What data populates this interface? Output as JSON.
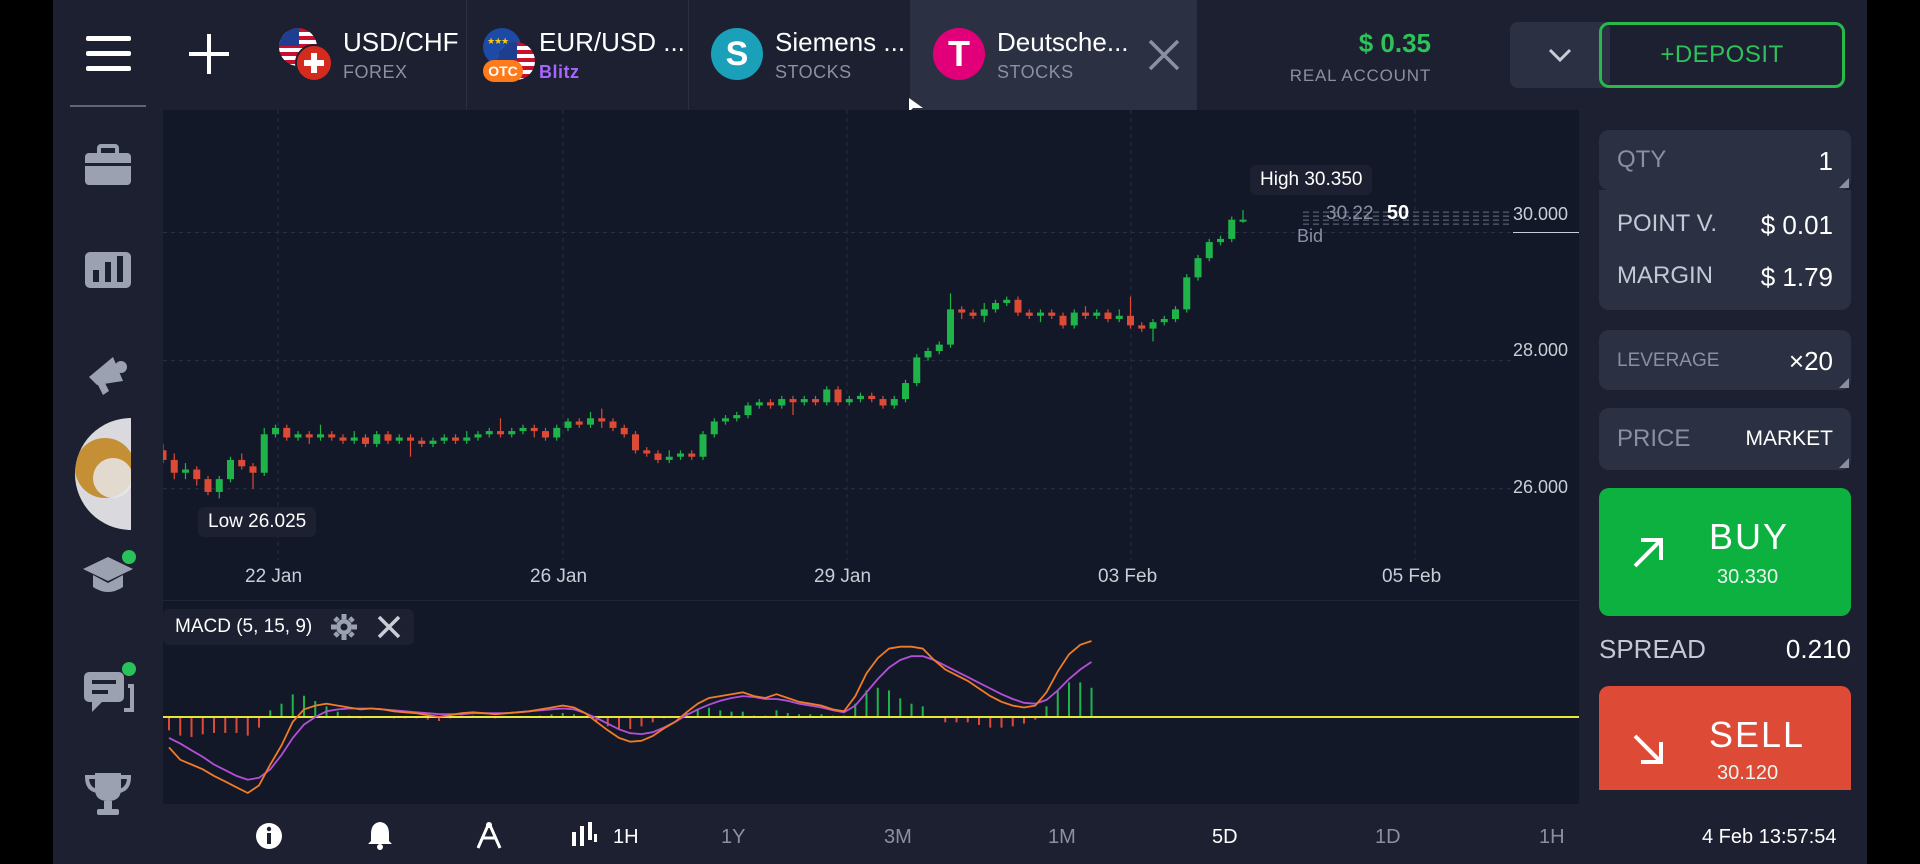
{
  "tabs": [
    {
      "symbol": "USD/CHF",
      "type": "FOREX"
    },
    {
      "symbol": "EUR/USD ...",
      "type": "Blitz",
      "badge": "OTC"
    },
    {
      "symbol": "Siemens ...",
      "type": "STOCKS",
      "logo": "S"
    },
    {
      "symbol": "Deutsche...",
      "type": "STOCKS",
      "logo": "T"
    }
  ],
  "account": {
    "balance": "$ 0.35",
    "label": "REAL ACCOUNT"
  },
  "deposit_label": "+DEPOSIT",
  "chart": {
    "high_label": "High 30.350",
    "low_label": "Low 26.025",
    "current_price_small": "30.22",
    "current_price_big": "50",
    "bid_label": "Bid",
    "y_ticks": [
      "30.000",
      "28.000",
      "26.000"
    ],
    "x_ticks": [
      "22 Jan",
      "26 Jan",
      "29 Jan",
      "03 Feb",
      "05 Feb"
    ]
  },
  "macd": {
    "label": "MACD (5, 15, 9)"
  },
  "bottom": {
    "interval_label": "1H",
    "timeframes": [
      "1Y",
      "3M",
      "1M",
      "5D",
      "1D",
      "1H"
    ],
    "active_timeframe": "5D",
    "clock": "4 Feb 13:57:54"
  },
  "order": {
    "qty_label": "QTY",
    "qty_value": "1",
    "point_label": "POINT V.",
    "point_value": "$ 0.01",
    "margin_label": "MARGIN",
    "margin_value": "$ 1.79",
    "leverage_label": "LEVERAGE",
    "leverage_value": "×20",
    "price_label": "PRICE",
    "price_value": "MARKET",
    "buy_label": "BUY",
    "buy_price": "30.330",
    "spread_label": "SPREAD",
    "spread_value": "0.210",
    "sell_label": "SELL",
    "sell_price": "30.120"
  },
  "colors": {
    "up": "#1fb44a",
    "down": "#dd4a35",
    "macd_line": "#f07c25",
    "signal_line": "#b44fd8",
    "zero_line": "#e6e63c"
  },
  "chart_data": {
    "type": "candlestick",
    "title": "",
    "xlabel": "",
    "ylabel": "",
    "ylim": [
      25.2,
      31.6
    ],
    "x_ticks": [
      "22 Jan",
      "26 Jan",
      "29 Jan",
      "03 Feb",
      "05 Feb"
    ],
    "y_ticks": [
      30.0,
      28.0,
      26.0
    ],
    "high": 30.35,
    "low": 26.025,
    "last_bid": 30.225,
    "candles": [
      [
        26.6,
        26.45,
        26.7,
        26.4
      ],
      [
        26.45,
        26.25,
        26.55,
        26.15
      ],
      [
        26.25,
        26.3,
        26.4,
        26.15
      ],
      [
        26.3,
        26.15,
        26.35,
        26.05
      ],
      [
        26.15,
        25.95,
        26.2,
        25.9
      ],
      [
        25.95,
        26.15,
        26.2,
        25.85
      ],
      [
        26.15,
        26.45,
        26.5,
        26.1
      ],
      [
        26.45,
        26.35,
        26.55,
        26.3
      ],
      [
        26.35,
        26.25,
        26.4,
        26.0
      ],
      [
        26.25,
        26.85,
        26.95,
        26.2
      ],
      [
        26.85,
        26.95,
        27.0,
        26.8
      ],
      [
        26.95,
        26.8,
        27.0,
        26.75
      ],
      [
        26.8,
        26.85,
        26.9,
        26.75
      ],
      [
        26.85,
        26.8,
        26.9,
        26.7
      ],
      [
        26.8,
        26.85,
        27.0,
        26.75
      ],
      [
        26.85,
        26.8,
        26.9,
        26.75
      ],
      [
        26.8,
        26.75,
        26.85,
        26.7
      ],
      [
        26.75,
        26.8,
        26.9,
        26.7
      ],
      [
        26.8,
        26.7,
        26.85,
        26.65
      ],
      [
        26.7,
        26.85,
        26.9,
        26.65
      ],
      [
        26.85,
        26.75,
        26.9,
        26.7
      ],
      [
        26.75,
        26.8,
        26.85,
        26.7
      ],
      [
        26.8,
        26.75,
        26.85,
        26.5
      ],
      [
        26.75,
        26.7,
        26.8,
        26.65
      ],
      [
        26.7,
        26.75,
        26.8,
        26.65
      ],
      [
        26.75,
        26.8,
        26.85,
        26.7
      ],
      [
        26.8,
        26.75,
        26.85,
        26.7
      ],
      [
        26.75,
        26.8,
        26.9,
        26.7
      ],
      [
        26.8,
        26.85,
        26.9,
        26.75
      ],
      [
        26.85,
        26.9,
        26.95,
        26.8
      ],
      [
        26.9,
        26.85,
        27.1,
        26.8
      ],
      [
        26.85,
        26.9,
        26.95,
        26.8
      ],
      [
        26.9,
        26.95,
        27.0,
        26.85
      ],
      [
        26.95,
        26.9,
        27.0,
        26.8
      ],
      [
        26.9,
        26.8,
        26.95,
        26.75
      ],
      [
        26.8,
        26.95,
        27.0,
        26.75
      ],
      [
        26.95,
        27.05,
        27.1,
        26.9
      ],
      [
        27.05,
        27.0,
        27.1,
        26.95
      ],
      [
        27.0,
        27.1,
        27.2,
        26.95
      ],
      [
        27.1,
        27.05,
        27.25,
        26.95
      ],
      [
        27.05,
        26.95,
        27.1,
        26.9
      ],
      [
        26.95,
        26.85,
        27.0,
        26.8
      ],
      [
        26.85,
        26.6,
        26.9,
        26.55
      ],
      [
        26.6,
        26.55,
        26.65,
        26.5
      ],
      [
        26.55,
        26.45,
        26.6,
        26.4
      ],
      [
        26.45,
        26.5,
        26.6,
        26.4
      ],
      [
        26.5,
        26.55,
        26.6,
        26.45
      ],
      [
        26.55,
        26.5,
        26.6,
        26.45
      ],
      [
        26.5,
        26.85,
        26.9,
        26.45
      ],
      [
        26.85,
        27.05,
        27.1,
        26.8
      ],
      [
        27.05,
        27.1,
        27.15,
        27.0
      ],
      [
        27.1,
        27.15,
        27.2,
        27.05
      ],
      [
        27.15,
        27.3,
        27.35,
        27.1
      ],
      [
        27.3,
        27.35,
        27.4,
        27.25
      ],
      [
        27.35,
        27.3,
        27.4,
        27.25
      ],
      [
        27.3,
        27.4,
        27.45,
        27.25
      ],
      [
        27.4,
        27.35,
        27.45,
        27.15
      ],
      [
        27.35,
        27.4,
        27.45,
        27.3
      ],
      [
        27.4,
        27.35,
        27.45,
        27.3
      ],
      [
        27.35,
        27.55,
        27.6,
        27.3
      ],
      [
        27.55,
        27.35,
        27.6,
        27.3
      ],
      [
        27.35,
        27.4,
        27.45,
        27.3
      ],
      [
        27.4,
        27.45,
        27.5,
        27.35
      ],
      [
        27.45,
        27.4,
        27.5,
        27.35
      ],
      [
        27.4,
        27.3,
        27.45,
        27.25
      ],
      [
        27.3,
        27.4,
        27.45,
        27.25
      ],
      [
        27.4,
        27.65,
        27.7,
        27.35
      ],
      [
        27.65,
        28.05,
        28.1,
        27.6
      ],
      [
        28.05,
        28.15,
        28.2,
        28.0
      ],
      [
        28.15,
        28.25,
        28.3,
        28.1
      ],
      [
        28.25,
        28.8,
        29.05,
        28.2
      ],
      [
        28.8,
        28.75,
        28.85,
        28.65
      ],
      [
        28.75,
        28.7,
        28.8,
        28.65
      ],
      [
        28.7,
        28.8,
        28.9,
        28.6
      ],
      [
        28.8,
        28.9,
        28.95,
        28.75
      ],
      [
        28.9,
        28.95,
        29.0,
        28.85
      ],
      [
        28.95,
        28.75,
        29.0,
        28.7
      ],
      [
        28.75,
        28.7,
        28.8,
        28.65
      ],
      [
        28.7,
        28.75,
        28.8,
        28.6
      ],
      [
        28.75,
        28.7,
        28.8,
        28.65
      ],
      [
        28.7,
        28.55,
        28.75,
        28.5
      ],
      [
        28.55,
        28.75,
        28.8,
        28.5
      ],
      [
        28.75,
        28.7,
        28.85,
        28.65
      ],
      [
        28.7,
        28.75,
        28.8,
        28.65
      ],
      [
        28.75,
        28.65,
        28.8,
        28.6
      ],
      [
        28.65,
        28.7,
        28.8,
        28.6
      ],
      [
        28.7,
        28.55,
        29.0,
        28.5
      ],
      [
        28.55,
        28.5,
        28.6,
        28.45
      ],
      [
        28.5,
        28.6,
        28.65,
        28.3
      ],
      [
        28.6,
        28.65,
        28.7,
        28.55
      ],
      [
        28.65,
        28.8,
        28.85,
        28.6
      ],
      [
        28.8,
        29.3,
        29.35,
        28.75
      ],
      [
        29.3,
        29.6,
        29.65,
        29.25
      ],
      [
        29.6,
        29.85,
        29.9,
        29.55
      ],
      [
        29.85,
        29.9,
        29.95,
        29.8
      ],
      [
        29.9,
        30.2,
        30.25,
        29.85
      ],
      [
        30.2,
        30.2,
        30.35,
        30.15
      ]
    ],
    "macd_line": [
      -0.32,
      -0.45,
      -0.5,
      -0.55,
      -0.62,
      -0.68,
      -0.74,
      -0.8,
      -0.72,
      -0.5,
      -0.3,
      -0.05,
      0.08,
      0.12,
      0.14,
      0.12,
      0.1,
      0.08,
      0.09,
      0.08,
      0.06,
      0.05,
      0.04,
      0.02,
      0.0,
      0.02,
      0.04,
      0.05,
      0.04,
      0.03,
      0.04,
      0.05,
      0.06,
      0.08,
      0.1,
      0.12,
      0.1,
      0.04,
      -0.05,
      -0.14,
      -0.22,
      -0.26,
      -0.25,
      -0.2,
      -0.12,
      -0.05,
      0.05,
      0.14,
      0.2,
      0.22,
      0.24,
      0.26,
      0.22,
      0.2,
      0.24,
      0.2,
      0.16,
      0.14,
      0.12,
      0.08,
      0.06,
      0.22,
      0.46,
      0.62,
      0.72,
      0.74,
      0.74,
      0.72,
      0.6,
      0.5,
      0.44,
      0.38,
      0.3,
      0.22,
      0.16,
      0.12,
      0.1,
      0.12,
      0.26,
      0.48,
      0.66,
      0.76,
      0.8
    ],
    "signal_line": [
      -0.22,
      -0.28,
      -0.35,
      -0.42,
      -0.5,
      -0.56,
      -0.62,
      -0.66,
      -0.64,
      -0.55,
      -0.4,
      -0.22,
      -0.08,
      0.0,
      0.06,
      0.08,
      0.09,
      0.09,
      0.09,
      0.08,
      0.07,
      0.06,
      0.05,
      0.04,
      0.03,
      0.03,
      0.03,
      0.04,
      0.04,
      0.04,
      0.04,
      0.05,
      0.06,
      0.07,
      0.08,
      0.09,
      0.08,
      0.04,
      -0.01,
      -0.07,
      -0.13,
      -0.17,
      -0.18,
      -0.16,
      -0.11,
      -0.05,
      0.02,
      0.08,
      0.13,
      0.17,
      0.2,
      0.22,
      0.21,
      0.19,
      0.19,
      0.17,
      0.14,
      0.12,
      0.1,
      0.07,
      0.05,
      0.12,
      0.26,
      0.4,
      0.52,
      0.6,
      0.64,
      0.64,
      0.6,
      0.54,
      0.48,
      0.42,
      0.36,
      0.3,
      0.24,
      0.19,
      0.15,
      0.14,
      0.18,
      0.28,
      0.4,
      0.5,
      0.58
    ],
    "histogram": [
      -0.1,
      -0.14,
      -0.15,
      -0.13,
      -0.12,
      -0.12,
      -0.12,
      -0.14,
      -0.08,
      0.05,
      0.1,
      0.17,
      0.16,
      0.12,
      0.08,
      0.04,
      0.01,
      -0.01,
      0.0,
      0.0,
      -0.01,
      -0.01,
      -0.01,
      -0.02,
      -0.03,
      -0.01,
      0.01,
      0.01,
      0.0,
      -0.01,
      0.0,
      0.0,
      0.0,
      0.01,
      0.02,
      0.03,
      0.02,
      0.0,
      -0.04,
      -0.07,
      -0.09,
      -0.09,
      -0.07,
      -0.04,
      -0.01,
      0.0,
      0.03,
      0.06,
      0.07,
      0.05,
      0.04,
      0.04,
      0.01,
      0.01,
      0.05,
      0.03,
      0.02,
      0.02,
      0.02,
      0.01,
      0.01,
      0.1,
      0.2,
      0.22,
      0.2,
      0.14,
      0.1,
      0.08,
      0.0,
      -0.04,
      -0.04,
      -0.04,
      -0.06,
      -0.08,
      -0.08,
      -0.07,
      -0.05,
      -0.02,
      0.08,
      0.2,
      0.26,
      0.26,
      0.22
    ]
  }
}
